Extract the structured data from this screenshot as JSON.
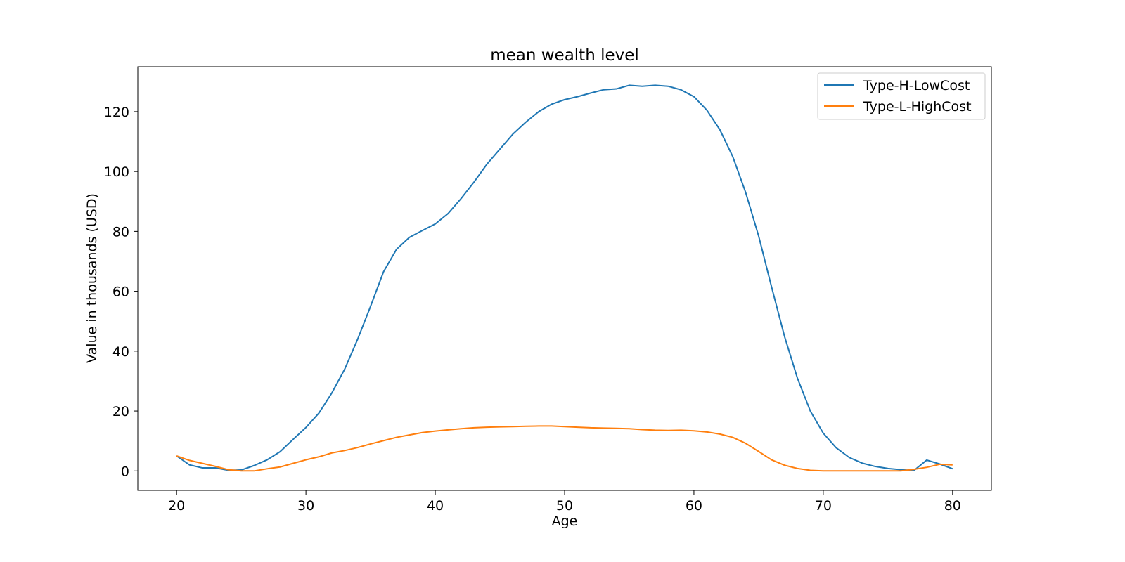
{
  "chart_data": {
    "type": "line",
    "title": "mean wealth level",
    "xlabel": "Age",
    "ylabel": "Value in thousands (USD)",
    "xlim": [
      17,
      83
    ],
    "ylim": [
      -6.5,
      135
    ],
    "xticks": [
      20,
      30,
      40,
      50,
      60,
      70,
      80
    ],
    "yticks": [
      0,
      20,
      40,
      60,
      80,
      100,
      120
    ],
    "grid": false,
    "legend_position": "top-right",
    "x": [
      20,
      21,
      22,
      23,
      24,
      25,
      26,
      27,
      28,
      29,
      30,
      31,
      32,
      33,
      34,
      35,
      36,
      37,
      38,
      39,
      40,
      41,
      42,
      43,
      44,
      45,
      46,
      47,
      48,
      49,
      50,
      51,
      52,
      53,
      54,
      55,
      56,
      57,
      58,
      59,
      60,
      61,
      62,
      63,
      64,
      65,
      66,
      67,
      68,
      69,
      70,
      71,
      72,
      73,
      74,
      75,
      76,
      77,
      78,
      79,
      80
    ],
    "series": [
      {
        "name": "Type-H-LowCost",
        "color": "#1f77b4",
        "values": [
          5.0,
          2.0,
          1.0,
          1.0,
          0.2,
          0.3,
          1.8,
          3.7,
          6.4,
          10.5,
          14.5,
          19.3,
          26.0,
          34.0,
          44.0,
          55.0,
          66.5,
          74.0,
          78.0,
          80.3,
          82.5,
          86.0,
          91.0,
          96.5,
          102.5,
          107.5,
          112.5,
          116.5,
          120.0,
          122.5,
          124.0,
          125.0,
          126.2,
          127.3,
          127.6,
          128.8,
          128.5,
          128.8,
          128.5,
          127.3,
          125.0,
          120.5,
          114.0,
          105.0,
          93.0,
          78.5,
          61.5,
          45.0,
          31.0,
          20.0,
          12.6,
          7.7,
          4.5,
          2.6,
          1.5,
          0.8,
          0.4,
          0.1,
          3.6,
          2.3,
          0.7
        ]
      },
      {
        "name": "Type-L-HighCost",
        "color": "#ff7f0e",
        "values": [
          5.0,
          3.5,
          2.5,
          1.5,
          0.4,
          0.0,
          0.0,
          0.7,
          1.3,
          2.5,
          3.7,
          4.7,
          6.0,
          6.8,
          7.8,
          9.0,
          10.1,
          11.2,
          12.0,
          12.8,
          13.3,
          13.7,
          14.1,
          14.4,
          14.6,
          14.7,
          14.8,
          14.9,
          15.0,
          15.0,
          14.8,
          14.6,
          14.4,
          14.3,
          14.2,
          14.1,
          13.8,
          13.6,
          13.5,
          13.6,
          13.4,
          13.0,
          12.3,
          11.2,
          9.2,
          6.5,
          3.7,
          1.9,
          0.8,
          0.2,
          0.0,
          0.0,
          0.0,
          0.0,
          0.0,
          0.0,
          0.0,
          0.5,
          1.2,
          2.2,
          2.0
        ]
      }
    ]
  }
}
